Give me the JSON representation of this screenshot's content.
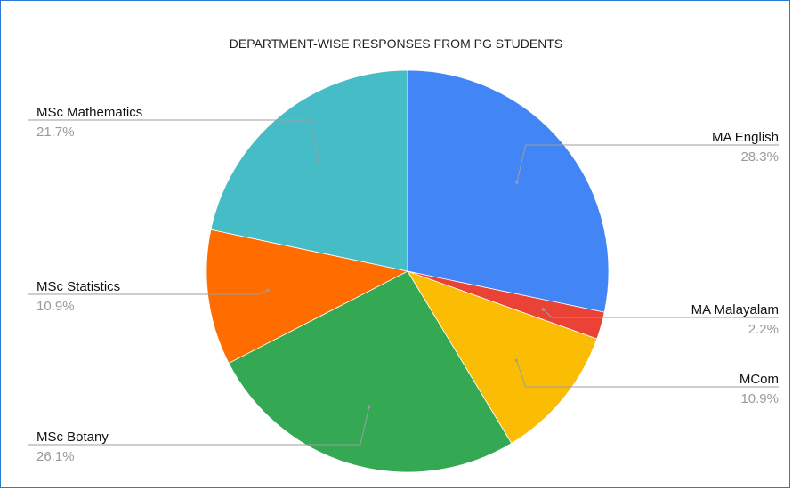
{
  "chart_data": {
    "type": "pie",
    "title": "DEPARTMENT-WISE RESPONSES FROM PG STUDENTS",
    "start_angle_deg": 0,
    "direction": "clockwise",
    "slices": [
      {
        "label": "MA English",
        "value": 28.3,
        "percent_label": "28.3%",
        "color": "#4285F4"
      },
      {
        "label": "MA Malayalam",
        "value": 2.2,
        "percent_label": "2.2%",
        "color": "#EA4335"
      },
      {
        "label": "MCom",
        "value": 10.9,
        "percent_label": "10.9%",
        "color": "#FBBC04"
      },
      {
        "label": "MSc Botany",
        "value": 26.1,
        "percent_label": "26.1%",
        "color": "#34A853"
      },
      {
        "label": "MSc Statistics",
        "value": 10.9,
        "percent_label": "10.9%",
        "color": "#FF6D01"
      },
      {
        "label": "MSc Mathematics",
        "value": 21.7,
        "percent_label": "21.7%",
        "color": "#46BDC6"
      }
    ],
    "label_placement": "outside with leader lines"
  },
  "colors": {
    "frame_border": "#2b7bd6",
    "leader_line": "#9e9e9e"
  }
}
